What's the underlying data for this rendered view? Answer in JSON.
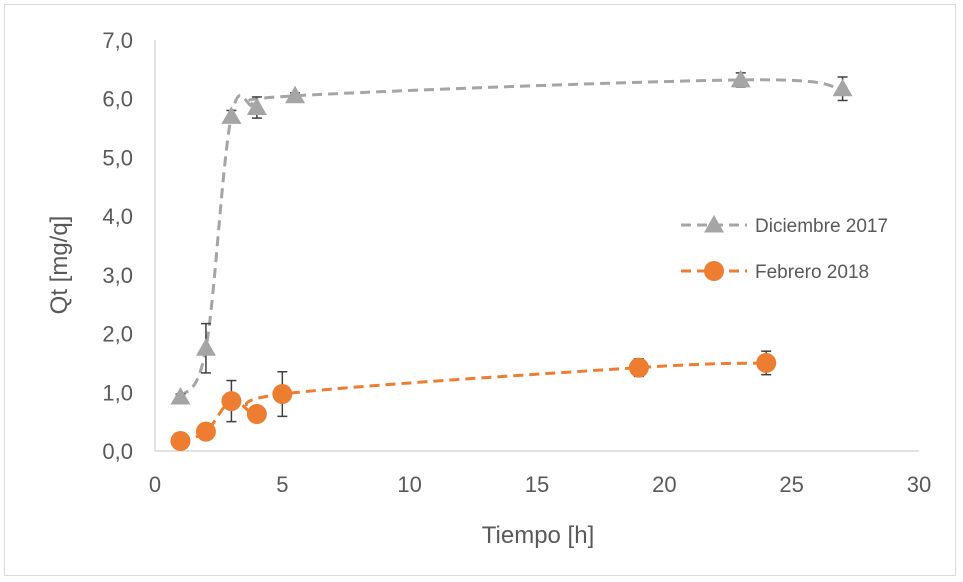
{
  "chart_data": {
    "type": "line",
    "title": "",
    "xlabel": "Tiempo [h]",
    "ylabel": "Qt [mg/q]",
    "xlim": [
      0,
      30
    ],
    "ylim": [
      0,
      7
    ],
    "x_ticks": [
      0,
      5,
      10,
      15,
      20,
      25,
      30
    ],
    "x_tick_labels": [
      "0",
      "5",
      "10",
      "15",
      "20",
      "25",
      "30"
    ],
    "y_ticks": [
      0,
      1,
      2,
      3,
      4,
      5,
      6,
      7
    ],
    "y_tick_labels": [
      "0,0",
      "1,0",
      "2,0",
      "3,0",
      "4,0",
      "5,0",
      "6,0",
      "7,0"
    ],
    "grid": false,
    "legend_position": "right",
    "series": [
      {
        "name": "Diciembre 2017",
        "color": "#a5a5a5",
        "marker": "triangle",
        "line_style": "dashed",
        "x": [
          1,
          2,
          3,
          4,
          5.5,
          23,
          27
        ],
        "y": [
          0.92,
          1.75,
          5.7,
          5.85,
          6.05,
          6.32,
          6.17
        ],
        "error": [
          0.05,
          0.42,
          0.1,
          0.18,
          0.05,
          0.12,
          0.2
        ]
      },
      {
        "name": "Febrero 2018",
        "color": "#ed7d31",
        "marker": "circle",
        "line_style": "dashed",
        "x": [
          1,
          2,
          3,
          4,
          5,
          19,
          24
        ],
        "y": [
          0.17,
          0.33,
          0.85,
          0.63,
          0.97,
          1.42,
          1.5
        ],
        "error": [
          0.05,
          0.05,
          0.35,
          0.13,
          0.38,
          0.15,
          0.2
        ]
      }
    ]
  }
}
